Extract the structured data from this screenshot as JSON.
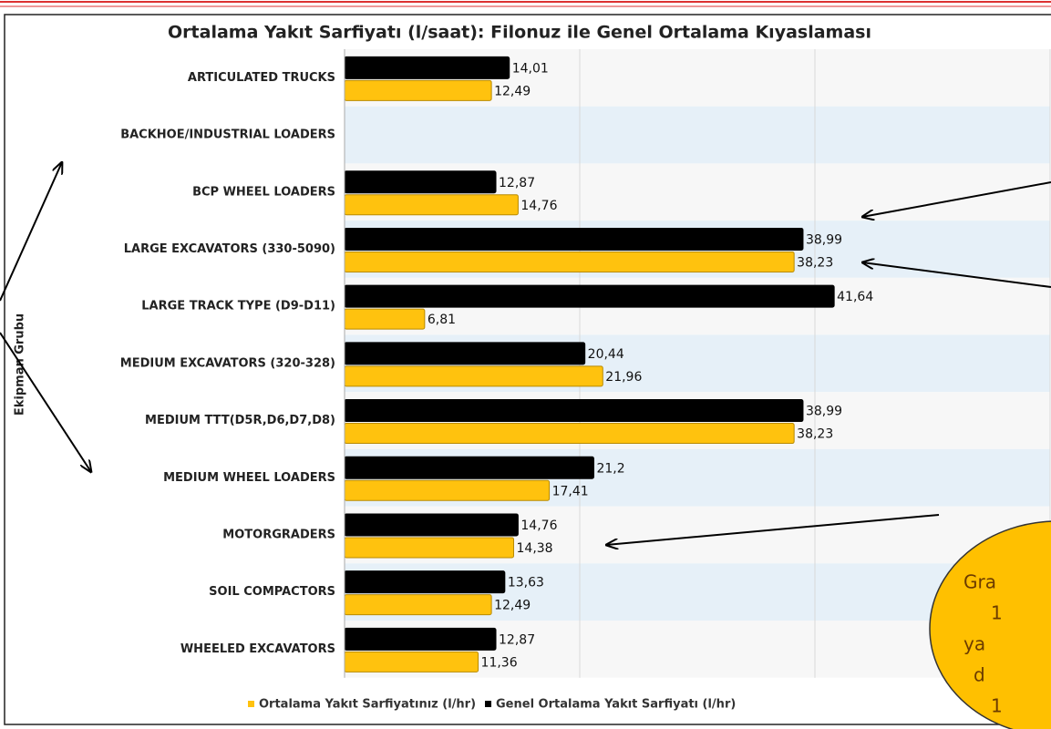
{
  "chart_data": {
    "type": "bar",
    "orientation": "horizontal",
    "title": "Ortalama Yakıt Sarfiyatı (l/saat): Filonuz ile Genel Ortalama Kıyaslaması",
    "y_label": "Ekipman Grubu",
    "categories": [
      "ARTICULATED TRUCKS",
      "BACKHOE/INDUSTRIAL LOADERS",
      "BCP WHEEL LOADERS",
      "LARGE EXCAVATORS (330-5090)",
      "LARGE TRACK TYPE (D9-D11)",
      "MEDIUM EXCAVATORS (320-328)",
      "MEDIUM TTT(D5R,D6,D7,D8)",
      "MEDIUM WHEEL LOADERS",
      "MOTORGRADERS",
      "SOIL COMPACTORS",
      "WHEELED EXCAVATORS"
    ],
    "series": [
      {
        "name": "Ortalama Yakıt Sarfiyatınız (l/hr)",
        "color": "#ffc20e",
        "values": [
          12.49,
          null,
          14.76,
          38.23,
          6.81,
          21.96,
          38.23,
          17.41,
          14.38,
          12.49,
          11.36
        ],
        "value_labels": [
          "12,49",
          null,
          "14,76",
          "38,23",
          "6,81",
          "21,96",
          "38,23",
          "17,41",
          "14,38",
          "12,49",
          "11,36"
        ]
      },
      {
        "name": "Genel Ortalama Yakıt Sarfiyatı (l/hr)",
        "color": "#000000",
        "values": [
          14.01,
          null,
          12.87,
          38.99,
          41.64,
          20.44,
          38.99,
          21.2,
          14.76,
          13.63,
          12.87
        ],
        "value_labels": [
          "14,01",
          null,
          "12,87",
          "38,99",
          "41,64",
          "20,44",
          "38,99",
          "21,2",
          "14,76",
          "13,63",
          "12,87"
        ]
      }
    ],
    "xlim": [
      0,
      60
    ],
    "xticks": [
      0,
      20,
      40,
      60
    ],
    "grid": true,
    "legend": "bottom",
    "annotation": [
      "Gra",
      "1",
      "ya",
      "d",
      "1"
    ]
  }
}
